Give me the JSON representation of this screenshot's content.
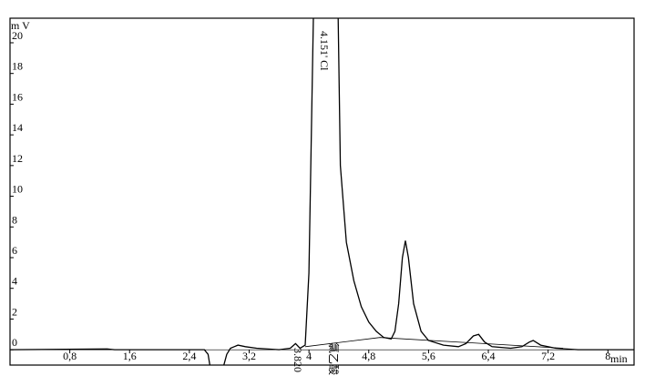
{
  "chart_data": {
    "type": "line",
    "y_label": "m V",
    "x_label": "min",
    "annotations": [
      "4.151' Cl",
      "3.820",
      "氯乙酸"
    ],
    "xlim": [
      0,
      8.35
    ],
    "ylim": [
      -1,
      21.6
    ],
    "xticks": [
      {
        "value": 0.8,
        "label": "0,8"
      },
      {
        "value": 1.6,
        "label": "1,6"
      },
      {
        "value": 2.4,
        "label": "2,4"
      },
      {
        "value": 3.2,
        "label": "3,2"
      },
      4,
      {
        "value": 4.8,
        "label": "4,8"
      },
      {
        "value": 5.6,
        "label": "5,6"
      },
      {
        "value": 6.4,
        "label": "6,4"
      },
      {
        "value": 7.2,
        "label": "7,2"
      },
      8
    ],
    "yticks": [
      0,
      2,
      4,
      6,
      8,
      10,
      12,
      14,
      16,
      18,
      20
    ],
    "color": "#000000",
    "x": [
      0,
      1.3,
      1.4,
      2.6,
      2.65,
      2.68,
      2.85,
      2.9,
      2.95,
      3.0,
      3.05,
      3.15,
      3.3,
      3.6,
      3.75,
      3.82,
      3.88,
      3.95,
      4.0,
      4.06,
      4.39,
      4.42,
      4.5,
      4.6,
      4.7,
      4.8,
      4.9,
      5.0,
      5.1,
      5.15,
      5.2,
      5.25,
      5.29,
      5.33,
      5.4,
      5.5,
      5.6,
      5.8,
      6.0,
      6.1,
      6.2,
      6.27,
      6.35,
      6.45,
      6.7,
      6.85,
      6.95,
      7.0,
      7.1,
      7.3,
      7.6,
      8.35
    ],
    "values": [
      0,
      0.05,
      0,
      0,
      -0.3,
      -1.2,
      -1.2,
      -0.3,
      0.1,
      0.2,
      0.3,
      0.2,
      0.1,
      0,
      0.1,
      0.4,
      0.1,
      0.3,
      5,
      22,
      22,
      12,
      7,
      4.5,
      2.8,
      1.8,
      1.2,
      0.8,
      0.7,
      1.2,
      3,
      6,
      7.1,
      6,
      3,
      1.2,
      0.6,
      0.3,
      0.2,
      0.4,
      0.9,
      1,
      0.5,
      0.2,
      0.1,
      0.2,
      0.5,
      0.6,
      0.3,
      0.1,
      0,
      0
    ],
    "baseline": {
      "x": [
        3.95,
        4.95,
        7.4
      ],
      "values": [
        0.2,
        0.8,
        0.1
      ]
    }
  }
}
